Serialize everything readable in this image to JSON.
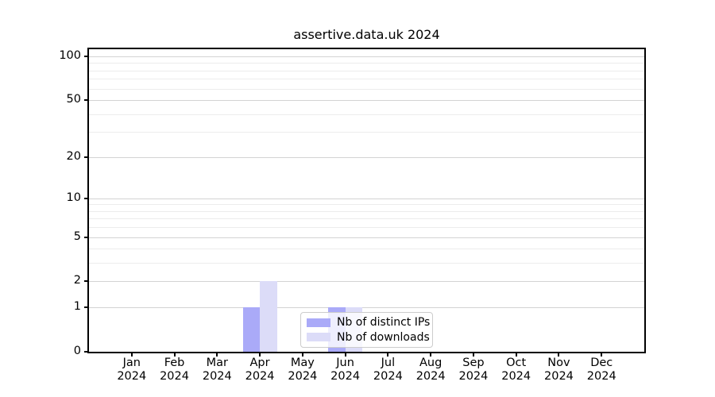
{
  "chart_data": {
    "type": "bar",
    "title": "assertive.data.uk 2024",
    "x_ticks": [
      {
        "line1": "Jan",
        "line2": "2024"
      },
      {
        "line1": "Feb",
        "line2": "2024"
      },
      {
        "line1": "Mar",
        "line2": "2024"
      },
      {
        "line1": "Apr",
        "line2": "2024"
      },
      {
        "line1": "May",
        "line2": "2024"
      },
      {
        "line1": "Jun",
        "line2": "2024"
      },
      {
        "line1": "Jul",
        "line2": "2024"
      },
      {
        "line1": "Aug",
        "line2": "2024"
      },
      {
        "line1": "Sep",
        "line2": "2024"
      },
      {
        "line1": "Oct",
        "line2": "2024"
      },
      {
        "line1": "Nov",
        "line2": "2024"
      },
      {
        "line1": "Dec",
        "line2": "2024"
      }
    ],
    "series": [
      {
        "name": "Nb of distinct IPs",
        "color": "#aaaaf8",
        "values": [
          0,
          0,
          0,
          1,
          0,
          1,
          0,
          0,
          0,
          0,
          0,
          0
        ]
      },
      {
        "name": "Nb of downloads",
        "color": "#dcdcf8",
        "values": [
          0,
          0,
          0,
          2,
          0,
          1,
          0,
          0,
          0,
          0,
          0,
          0
        ]
      }
    ],
    "yscale": "log1p",
    "ylim": [
      0,
      113
    ],
    "yticks": [
      0,
      1,
      2,
      5,
      10,
      20,
      50,
      100
    ],
    "minor_gridline_values": [
      3,
      4,
      6,
      7,
      8,
      9,
      30,
      40,
      60,
      70,
      80,
      90
    ],
    "grid": true,
    "legend_position": "inside lower-center-left",
    "colors": {
      "major_grid": "#d3d3d3",
      "minor_grid": "#ececec",
      "axis_frame": "#000000",
      "background": "#ffffff"
    }
  }
}
